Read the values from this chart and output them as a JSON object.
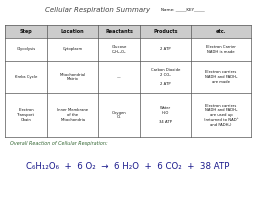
{
  "title": "Cellular Respiration Summary",
  "name_label": "Name: _____KEY_____",
  "headers": [
    "Step",
    "Location",
    "Reactants",
    "Products",
    "etc."
  ],
  "rows": [
    {
      "step": "Glycolysis",
      "location": "Cytoplasm",
      "reactants": "Glucose\nC₆H₁₂O₆",
      "products": "2 ATP",
      "etc": "Electron Carrier\nNADH is made"
    },
    {
      "step": "Krebs Cycle",
      "location": "Mitochondrial\nMatrix",
      "reactants": "—",
      "products": "Carbon Dioxide\n2 CO₂\n\n2 ATP",
      "etc": "Electron carriers\nNADH and FADH₂\nare made"
    },
    {
      "step": "Electron\nTransport\nChain",
      "location": "Inner Membrane\nof the\nMitochondria",
      "reactants": "Oxygen\nO₂",
      "products": "Water\nH₂O\n\n34 ATP",
      "etc": "Electron carriers\nNADH and FADH₂\nare used up\n(returned to NAD⁺\nand FADH₂)"
    }
  ],
  "overall_label": "Overall Reaction of Cellular Respiration:",
  "eq_parts": [
    "C₆H₁₂O₆",
    " + 6 O₂",
    " → 6 H₂O",
    " + 6 CO₂",
    " + 38 ATP"
  ],
  "background": "#ffffff",
  "border_color": "#555555",
  "header_bg": "#cccccc",
  "font_color": "#111111",
  "title_color": "#444444",
  "overall_color": "#336633",
  "eq_color": "#1a1a8c"
}
